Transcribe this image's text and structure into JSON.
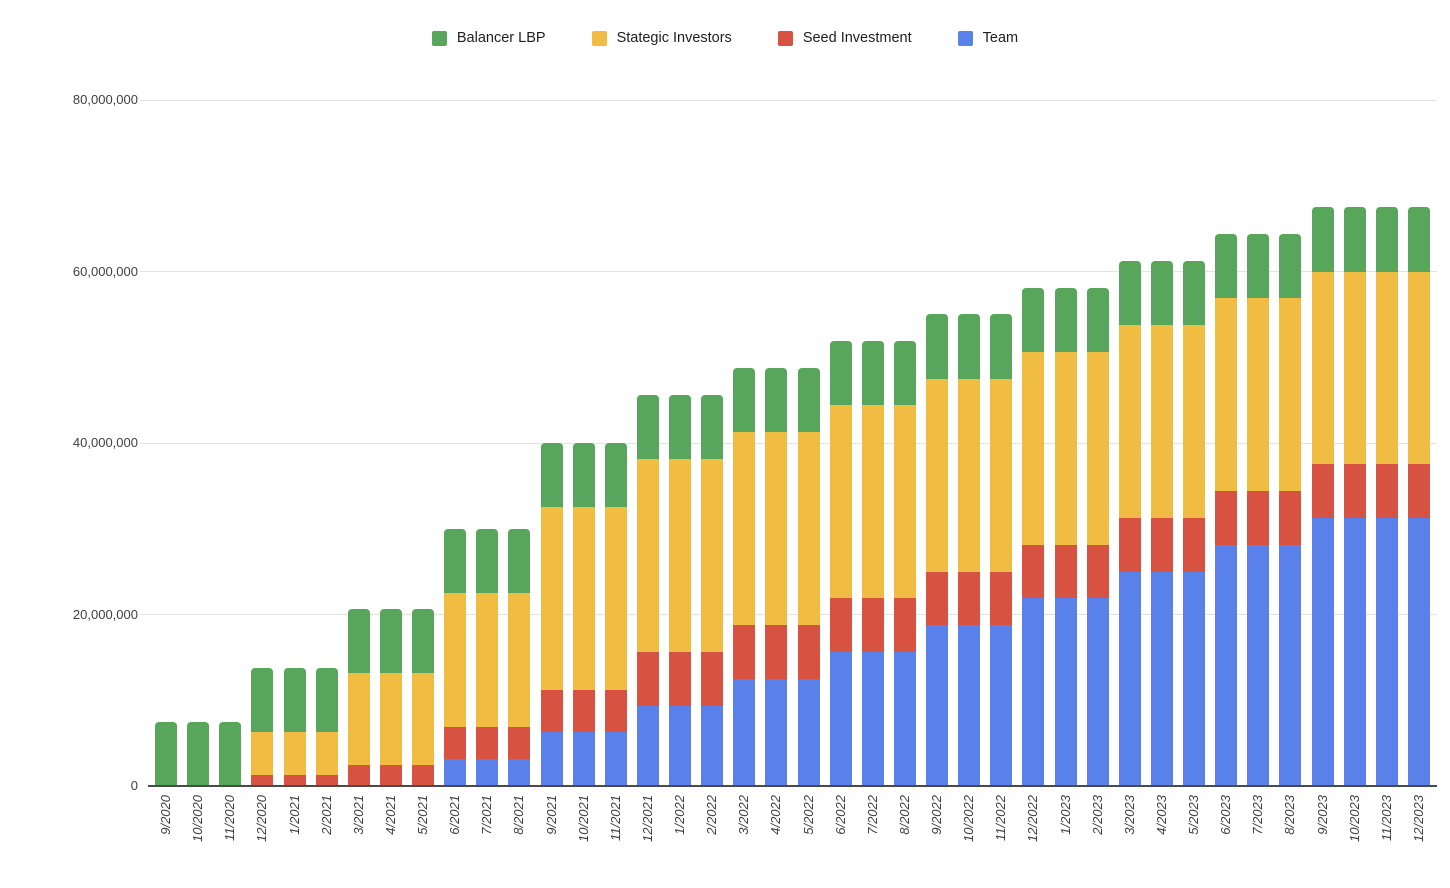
{
  "chart_data": {
    "type": "bar",
    "stacked": true,
    "title": "",
    "xlabel": "",
    "ylabel": "",
    "legend_position": "top",
    "grid": true,
    "ylim": [
      0,
      80000000
    ],
    "yticks": [
      {
        "value": 0,
        "label": "0"
      },
      {
        "value": 20000000,
        "label": "20,000,000"
      },
      {
        "value": 40000000,
        "label": "40,000,000"
      },
      {
        "value": 60000000,
        "label": "60,000,000"
      },
      {
        "value": 80000000,
        "label": "80,000,000"
      }
    ],
    "categories": [
      "9/2020",
      "10/2020",
      "11/2020",
      "12/2020",
      "1/2021",
      "2/2021",
      "3/2021",
      "4/2021",
      "5/2021",
      "6/2021",
      "7/2021",
      "8/2021",
      "9/2021",
      "10/2021",
      "11/2021",
      "12/2021",
      "1/2022",
      "2/2022",
      "3/2022",
      "4/2022",
      "5/2022",
      "6/2022",
      "7/2022",
      "8/2022",
      "9/2022",
      "10/2022",
      "11/2022",
      "12/2022",
      "1/2023",
      "2/2023",
      "3/2023",
      "4/2023",
      "5/2023",
      "6/2023",
      "7/2023",
      "8/2023",
      "9/2023",
      "10/2023",
      "11/2023",
      "12/2023"
    ],
    "series": [
      {
        "name": "Balancer LBP",
        "color": "#58A55C",
        "values": [
          7500000,
          7500000,
          7500000,
          7500000,
          7500000,
          7500000,
          7500000,
          7500000,
          7500000,
          7500000,
          7500000,
          7500000,
          7500000,
          7500000,
          7500000,
          7500000,
          7500000,
          7500000,
          7500000,
          7500000,
          7500000,
          7500000,
          7500000,
          7500000,
          7500000,
          7500000,
          7500000,
          7500000,
          7500000,
          7500000,
          7500000,
          7500000,
          7500000,
          7500000,
          7500000,
          7500000,
          7500000,
          7500000,
          7500000,
          7500000
        ]
      },
      {
        "name": "Stategic Investors",
        "color": "#F0BC42",
        "values": [
          0,
          0,
          0,
          5000000,
          5000000,
          5000000,
          10625000,
          10625000,
          10625000,
          15625000,
          15625000,
          15625000,
          21250000,
          21250000,
          21250000,
          22500000,
          22500000,
          22500000,
          22500000,
          22500000,
          22500000,
          22500000,
          22500000,
          22500000,
          22500000,
          22500000,
          22500000,
          22500000,
          22500000,
          22500000,
          22500000,
          22500000,
          22500000,
          22500000,
          22500000,
          22500000,
          22500000,
          22500000,
          22500000,
          22500000
        ]
      },
      {
        "name": "Seed Investment",
        "color": "#D85242",
        "values": [
          0,
          0,
          0,
          1250000,
          1250000,
          1250000,
          2500000,
          2500000,
          2500000,
          3750000,
          3750000,
          3750000,
          5000000,
          5000000,
          5000000,
          6250000,
          6250000,
          6250000,
          6250000,
          6250000,
          6250000,
          6250000,
          6250000,
          6250000,
          6250000,
          6250000,
          6250000,
          6250000,
          6250000,
          6250000,
          6250000,
          6250000,
          6250000,
          6250000,
          6250000,
          6250000,
          6250000,
          6250000,
          6250000,
          6250000
        ]
      },
      {
        "name": "Team",
        "color": "#5A81EA",
        "values": [
          0,
          0,
          0,
          0,
          0,
          0,
          0,
          0,
          0,
          3125000,
          3125000,
          3125000,
          6250000,
          6250000,
          6250000,
          9375000,
          9375000,
          9375000,
          12500000,
          12500000,
          12500000,
          15625000,
          15625000,
          15625000,
          18750000,
          18750000,
          18750000,
          21875000,
          21875000,
          21875000,
          25000000,
          25000000,
          25000000,
          28125000,
          28125000,
          28125000,
          31250000,
          31250000,
          31250000,
          31250000
        ]
      }
    ],
    "stack_order_bottom_to_top": [
      "Team",
      "Seed Investment",
      "Stategic Investors",
      "Balancer LBP"
    ]
  }
}
